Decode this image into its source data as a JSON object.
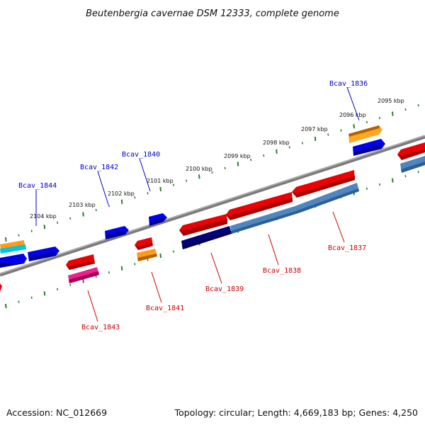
{
  "title": "Beutenbergia cavernae DSM 12333, complete genome",
  "footer": {
    "accession": "Accession: NC_012669",
    "summary": "Topology: circular; Length: 4,669,183 bp; Genes: 4,250"
  },
  "colors": {
    "backbone": "#808080",
    "tick": "#2e7d32",
    "forward_label": "#0000cc",
    "reverse_label": "#cc0000"
  },
  "kbp_labels": [
    "2095 kbp",
    "2096 kbp",
    "2097 kbp",
    "2098 kbp",
    "2099 kbp",
    "2100 kbp",
    "2101 kbp",
    "2102 kbp",
    "2103 kbp",
    "2104 kbp"
  ],
  "forward_gene_labels": [
    "Bcav_1836",
    "Bcav_1840",
    "Bcav_1842",
    "Bcav_1844"
  ],
  "reverse_gene_labels": [
    "Bcav_1837",
    "Bcav_1838",
    "Bcav_1839",
    "Bcav_1841",
    "Bcav_1843"
  ]
}
